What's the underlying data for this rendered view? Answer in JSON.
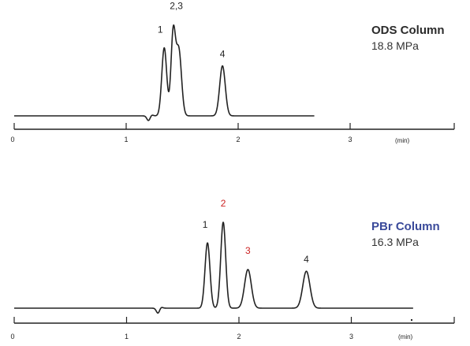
{
  "chart_data": [
    {
      "type": "line",
      "title": "ODS Column",
      "subtitle": "18.8 MPa",
      "title_color": "#2b2b2b",
      "xlabel": "(min)",
      "xlim": [
        0,
        3.9
      ],
      "x_ticks": [
        0,
        1,
        2,
        3
      ],
      "x_tick_labels": [
        "0",
        "1",
        "2",
        "3"
      ],
      "trace_x_range": [
        0,
        2.68
      ],
      "baseline_dip": {
        "x": 1.2,
        "depth": 0.06
      },
      "peaks": [
        {
          "label": "1",
          "x": 1.34,
          "height": 0.83,
          "sigma": 0.022,
          "label_color": "#222222"
        },
        {
          "label": "2,3",
          "x": 1.42,
          "height": 1.0,
          "sigma": 0.02,
          "label_color": "#222222"
        },
        {
          "label": "",
          "x": 1.47,
          "height": 0.8,
          "sigma": 0.024,
          "label_color": "#222222"
        },
        {
          "label": "4",
          "x": 1.86,
          "height": 0.61,
          "sigma": 0.025,
          "label_color": "#222222"
        }
      ]
    },
    {
      "type": "line",
      "title": "PBr Column",
      "subtitle": "16.3 MPa",
      "title_color": "#3a4a9a",
      "xlabel": "(min)",
      "xlim": [
        0,
        3.9
      ],
      "x_ticks": [
        0,
        1,
        2,
        3
      ],
      "x_tick_labels": [
        "0",
        "1",
        "2",
        "3"
      ],
      "trace_x_range": [
        0,
        3.55
      ],
      "baseline_dip": {
        "x": 1.28,
        "depth": 0.06
      },
      "peaks": [
        {
          "label": "1",
          "x": 1.72,
          "height": 0.76,
          "sigma": 0.022,
          "label_color": "#222222"
        },
        {
          "label": "2",
          "x": 1.86,
          "height": 1.0,
          "sigma": 0.022,
          "label_color": "#cc2222"
        },
        {
          "label": "3",
          "x": 2.08,
          "height": 0.45,
          "sigma": 0.03,
          "label_color": "#cc2222"
        },
        {
          "label": "4",
          "x": 2.6,
          "height": 0.43,
          "sigma": 0.032,
          "label_color": "#222222"
        }
      ]
    }
  ]
}
